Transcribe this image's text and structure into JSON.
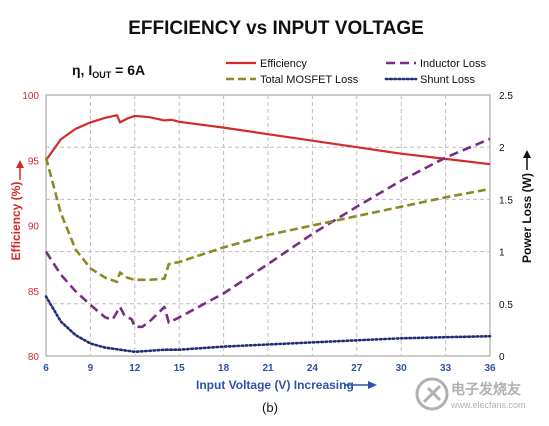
{
  "chart_data": {
    "type": "line",
    "title": "EFFICIENCY vs INPUT VOLTAGE",
    "condition": {
      "eta": "η, I",
      "sub": "OUT",
      "rest": " = 6A"
    },
    "xlabel": "Input Voltage (V) Increasing",
    "ylabel_left": "Efficiency (%)",
    "ylabel_right": "Power Loss (W)",
    "xlim": [
      6,
      36
    ],
    "xticks": [
      "6",
      "9",
      "12",
      "15",
      "18",
      "21",
      "24",
      "27",
      "30",
      "33",
      "36"
    ],
    "ylim_left": [
      80,
      100
    ],
    "yticks_left": [
      "80",
      "85",
      "90",
      "95",
      "100"
    ],
    "ylim_right": [
      0,
      2.5
    ],
    "yticks_right": [
      "0",
      "0.5",
      "1",
      "1.5",
      "2",
      "2.5"
    ],
    "grid": true,
    "caption": "(b)",
    "colors": {
      "efficiency": "#d32a2a",
      "inductor": "#7b2b88",
      "mosfet": "#8c8a26",
      "shunt": "#1f2d78",
      "axis_text": "#2d52a8"
    },
    "series": [
      {
        "name": "Efficiency",
        "axis": "left",
        "style": "solid",
        "x": [
          6,
          7,
          8,
          9,
          10,
          10.8,
          11,
          11.5,
          12,
          13,
          14,
          14.5,
          15,
          18,
          21,
          24,
          27,
          30,
          33,
          36
        ],
        "y": [
          95.0,
          96.6,
          97.4,
          97.9,
          98.25,
          98.45,
          97.9,
          98.2,
          98.4,
          98.3,
          98.05,
          98.1,
          97.95,
          97.5,
          97.0,
          96.5,
          96.0,
          95.5,
          95.1,
          94.7
        ]
      },
      {
        "name": "Inductor Loss",
        "axis": "right",
        "style": "dash",
        "x": [
          6,
          7,
          8,
          9,
          10,
          10.5,
          11,
          11.3,
          11.8,
          12,
          12.5,
          13,
          14,
          14.3,
          15,
          18,
          21,
          24,
          27,
          30,
          33,
          36
        ],
        "y": [
          1.0,
          0.78,
          0.62,
          0.49,
          0.37,
          0.35,
          0.47,
          0.39,
          0.35,
          0.28,
          0.28,
          0.33,
          0.47,
          0.32,
          0.37,
          0.6,
          0.88,
          1.17,
          1.43,
          1.68,
          1.9,
          2.08
        ]
      },
      {
        "name": "Total MOSFET Loss",
        "axis": "right",
        "style": "dash",
        "x": [
          6,
          7,
          8,
          9,
          10,
          10.8,
          11,
          11.5,
          12,
          13,
          14,
          14.3,
          15,
          18,
          21,
          24,
          27,
          30,
          33,
          36
        ],
        "y": [
          1.9,
          1.37,
          1.02,
          0.84,
          0.75,
          0.71,
          0.8,
          0.75,
          0.73,
          0.73,
          0.74,
          0.88,
          0.9,
          1.04,
          1.16,
          1.25,
          1.34,
          1.43,
          1.52,
          1.6
        ]
      },
      {
        "name": "Shunt Loss",
        "axis": "right",
        "style": "dot",
        "x": [
          6,
          7,
          8,
          9,
          10,
          11,
          12,
          13,
          14,
          15,
          18,
          21,
          24,
          27,
          30,
          33,
          36
        ],
        "y": [
          0.57,
          0.33,
          0.2,
          0.12,
          0.08,
          0.06,
          0.04,
          0.05,
          0.06,
          0.06,
          0.09,
          0.11,
          0.13,
          0.15,
          0.17,
          0.18,
          0.19
        ]
      }
    ]
  },
  "watermark": {
    "cn": "电子发烧友",
    "en": "www.elecfans.com"
  }
}
